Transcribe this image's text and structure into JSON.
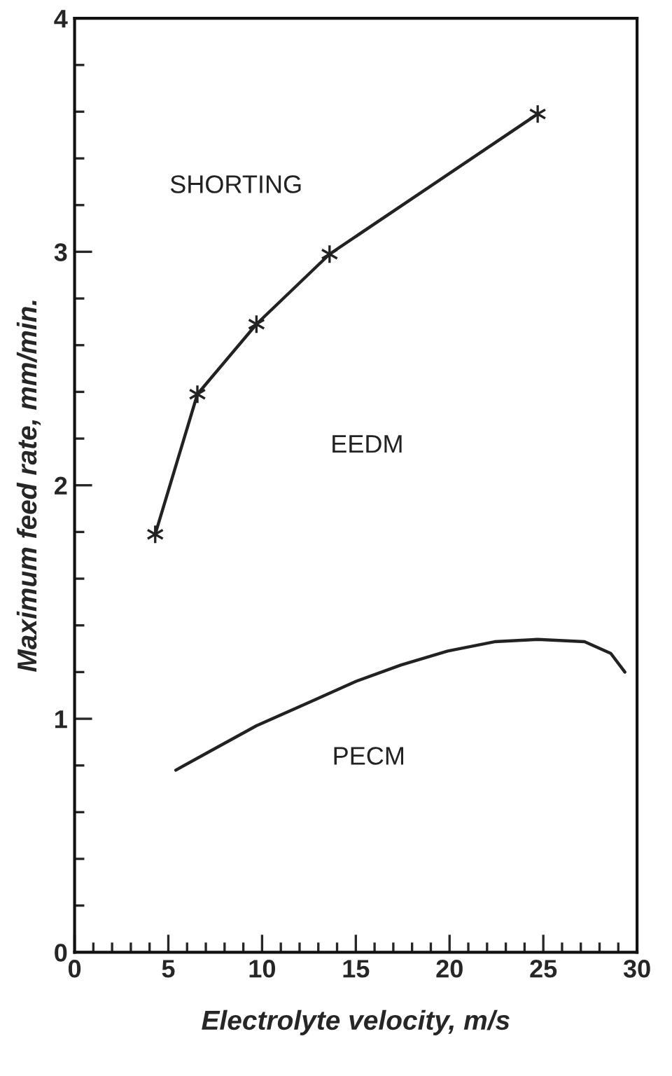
{
  "chart_data": {
    "type": "line",
    "xlabel": "Electrolyte velocity, m/s",
    "ylabel": "Maximum feed rate, mm/min.",
    "xlim": [
      0,
      30
    ],
    "xticks": [
      0,
      5,
      10,
      15,
      20,
      25,
      30
    ],
    "ylim": [
      0,
      4
    ],
    "yticks": [
      0,
      1,
      2,
      3,
      4
    ],
    "grid": false,
    "line_style": "solid",
    "series": [
      {
        "color": "#222222",
        "marker": "cross",
        "x": [
          4.3,
          6.55,
          9.7,
          13.6,
          24.7
        ],
        "values": [
          1.79,
          2.39,
          2.69,
          2.99,
          3.59
        ]
      },
      {
        "color": "#222222",
        "marker": "none",
        "x": [
          5.4,
          7.2,
          9.7,
          12.5,
          15.0,
          17.4,
          19.9,
          22.4,
          24.7,
          27.2,
          28.6,
          29.35
        ],
        "values": [
          0.78,
          0.86,
          0.97,
          1.07,
          1.16,
          1.23,
          1.29,
          1.33,
          1.34,
          1.33,
          1.28,
          1.2
        ]
      }
    ],
    "annotations": [
      "SHORTING",
      "EEDM",
      "PECM"
    ]
  }
}
